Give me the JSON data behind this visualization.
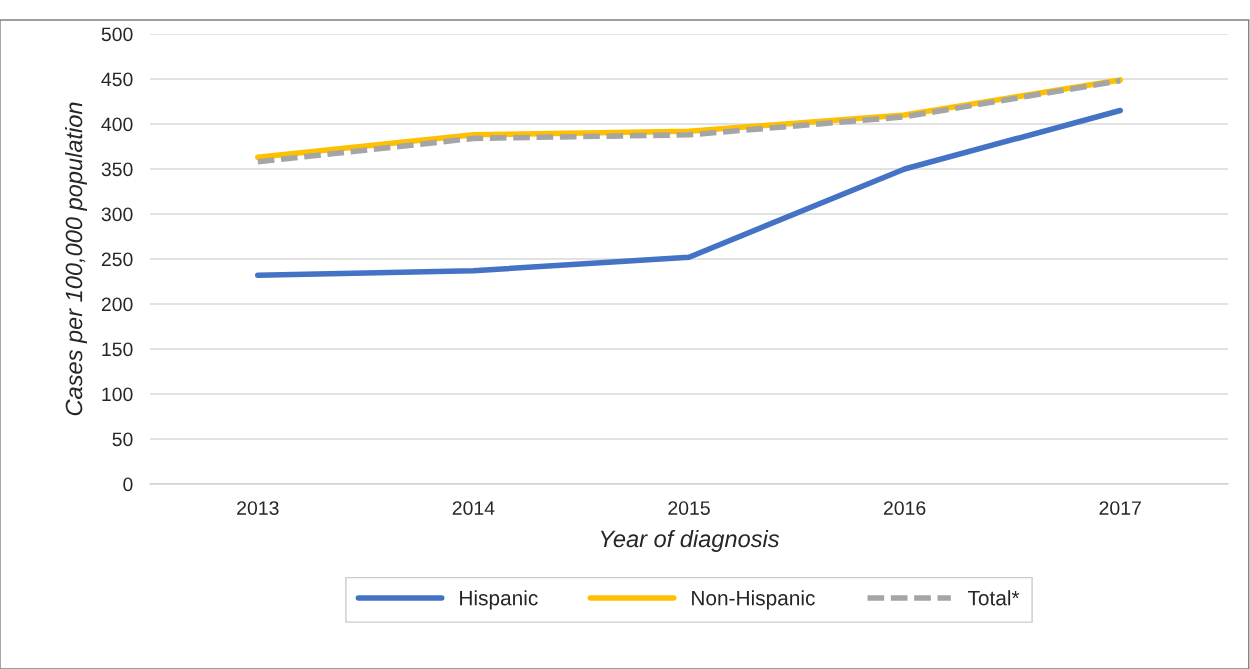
{
  "chart_data": {
    "type": "line",
    "xlabel": "Year of diagnosis",
    "ylabel": "Cases per 100,000 population",
    "categories": [
      "2013",
      "2014",
      "2015",
      "2016",
      "2017"
    ],
    "series": [
      {
        "name": "Hispanic",
        "color": "#4472c4",
        "values": [
          232,
          237,
          252,
          350,
          415
        ]
      },
      {
        "name": "Non-Hispanic",
        "color": "#ffc000",
        "values": [
          363,
          388,
          392,
          410,
          449
        ]
      },
      {
        "name": "Total*",
        "color": "#a5a5a5",
        "values": [
          358,
          384,
          388,
          408,
          448
        ],
        "line_style": "dashed"
      }
    ],
    "ylim": [
      0,
      500
    ],
    "yticks": [
      0,
      50,
      100,
      150,
      200,
      250,
      300,
      350,
      400,
      450,
      500
    ],
    "grid": "y",
    "legend": "bottom",
    "marker": "none"
  }
}
